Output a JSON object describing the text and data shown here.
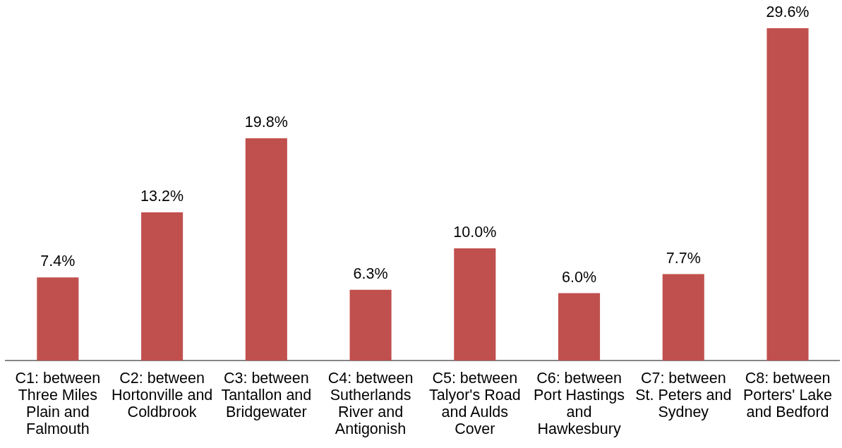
{
  "chart_data": {
    "type": "bar",
    "categories": [
      "C1: between Three Miles Plain and Falmouth",
      "C2: between Hortonville and Coldbrook",
      "C3: between Tantallon and Bridgewater",
      "C4: between Sutherlands River and Antigonish",
      "C5: between Talyor's Road and Aulds Cover",
      "C6: between Port Hastings and Hawkesbury",
      "C7: between St. Peters and Sydney",
      "C8: between Porters' Lake and Bedford"
    ],
    "values": [
      7.4,
      13.2,
      19.8,
      6.3,
      10.0,
      6.0,
      7.7,
      29.6
    ],
    "color": "#c0504d",
    "value_labels": [
      "7.4%",
      "13.2%",
      "19.8%",
      "6.3%",
      "10.0%",
      "6.0%",
      "7.7%",
      "29.6%"
    ],
    "grid": false,
    "legend": false
  }
}
